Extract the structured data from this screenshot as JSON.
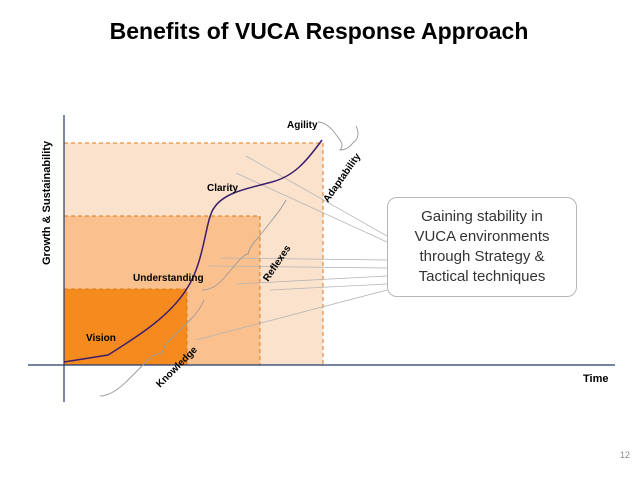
{
  "title": "Benefits of VUCA Response Approach",
  "axes": {
    "y_label": "Growth & Sustainability",
    "x_label": "Time"
  },
  "levels": [
    "Vision",
    "Understanding",
    "Clarity",
    "Agility"
  ],
  "braces": [
    "Knowledge",
    "Reflexes",
    "Adaptability"
  ],
  "callout": "Gaining stability in\nVUCA environments\nthrough Strategy &\nTactical techniques",
  "page_number": "12",
  "colors": {
    "outer_box": "#fbe2cc",
    "middle_box": "#fac08d",
    "inner_box": "#f58b1f",
    "box_border": "#e07a1a",
    "curve": "#3b1e6d",
    "axis": "#1f3a6b"
  }
}
